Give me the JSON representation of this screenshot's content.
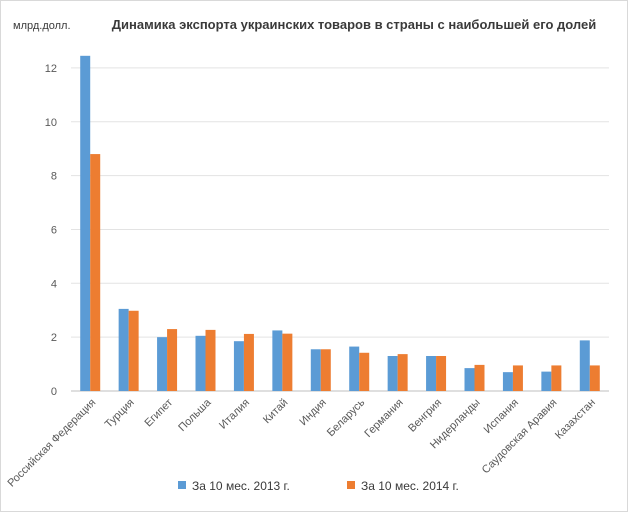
{
  "chart_data": {
    "type": "bar",
    "title": "Динамика экспорта украинских товаров в страны с наибольшей его долей",
    "ylabel": "млрд.долл.",
    "xlabel": "",
    "ylim": [
      0,
      13
    ],
    "yticks": [
      0,
      2,
      4,
      6,
      8,
      10,
      12
    ],
    "grid": true,
    "legend_position": "bottom",
    "categories": [
      "Российская Федерация",
      "Турция",
      "Египет",
      "Польша",
      "Италия",
      "Китай",
      "Индия",
      "Беларусь",
      "Германия",
      "Венгрия",
      "Нидерланды",
      "Испания",
      "Саудовская Аравия",
      "Казахстан"
    ],
    "series": [
      {
        "name": "За 10 мес. 2013 г.",
        "color": "#5b9bd5",
        "values": [
          12.45,
          3.05,
          2.0,
          2.05,
          1.85,
          2.25,
          1.55,
          1.65,
          1.3,
          1.3,
          0.85,
          0.7,
          0.72,
          1.88
        ]
      },
      {
        "name": "За 10 мес. 2014 г.",
        "color": "#ed7d31",
        "values": [
          8.8,
          2.98,
          2.3,
          2.27,
          2.12,
          2.13,
          1.55,
          1.42,
          1.37,
          1.3,
          0.97,
          0.95,
          0.95,
          0.95
        ]
      }
    ]
  }
}
